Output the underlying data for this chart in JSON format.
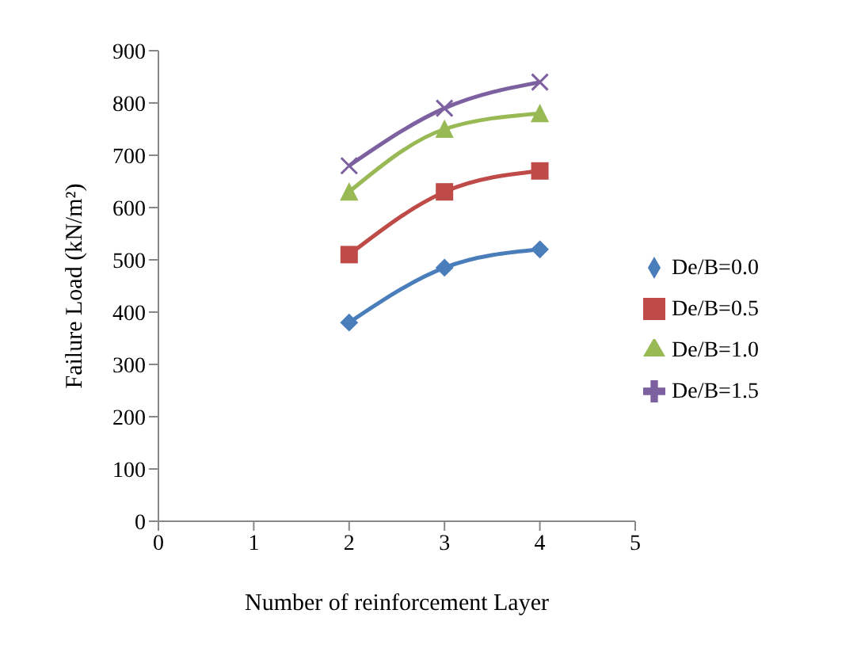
{
  "chart_data": {
    "type": "line",
    "xlabel": "Number of reinforcement Layer",
    "ylabel": "Failure Load (kN/m²)",
    "x": [
      2,
      3,
      4
    ],
    "xlim": [
      0,
      5
    ],
    "xticks": [
      0,
      1,
      2,
      3,
      4,
      5
    ],
    "ylim": [
      0,
      900
    ],
    "yticks": [
      0,
      100,
      200,
      300,
      400,
      500,
      600,
      700,
      800,
      900
    ],
    "grid": false,
    "legend": "right",
    "series": [
      {
        "name": "De/B=0.0",
        "color": "#4a7ebb",
        "marker": "diamond",
        "values": [
          380,
          485,
          520
        ]
      },
      {
        "name": "De/B=0.5",
        "color": "#be4b48",
        "marker": "square",
        "values": [
          510,
          630,
          670
        ]
      },
      {
        "name": "De/B=1.0",
        "color": "#98b954",
        "marker": "triangle",
        "values": [
          630,
          750,
          780
        ]
      },
      {
        "name": "De/B=1.5",
        "color": "#7d60a0",
        "marker": "cross",
        "values": [
          680,
          790,
          840
        ]
      }
    ]
  }
}
